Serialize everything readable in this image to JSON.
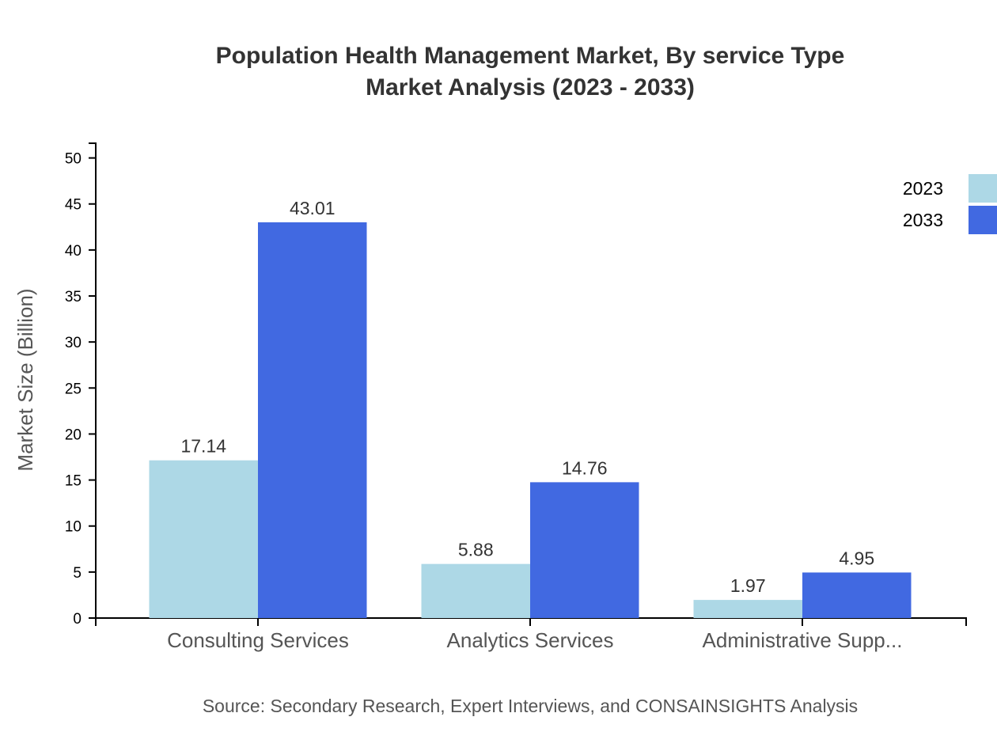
{
  "chart_data": {
    "type": "bar",
    "title": "Population Health Management Market, By service Type",
    "subtitle": "Market Analysis (2023 - 2033)",
    "xlabel": "",
    "ylabel": "Market Size (Billion)",
    "ylim": [
      0,
      51.6
    ],
    "yticks": [
      0,
      5,
      10,
      15,
      20,
      25,
      30,
      35,
      40,
      45,
      50
    ],
    "categories": [
      "Consulting Services",
      "Analytics Services",
      "Administrative Supp..."
    ],
    "series": [
      {
        "name": "2023",
        "color": "#add8e6",
        "values": [
          17.14,
          5.88,
          1.97
        ]
      },
      {
        "name": "2033",
        "color": "#4169e1",
        "values": [
          43.01,
          14.76,
          4.95
        ]
      }
    ],
    "grid": false,
    "legend": "top-right",
    "source": "Source: Secondary Research, Expert Interviews, and CONSAINSIGHTS Analysis"
  }
}
